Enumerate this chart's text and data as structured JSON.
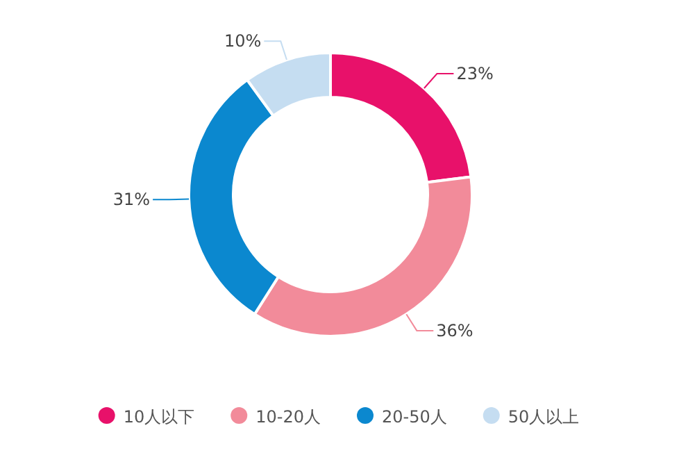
{
  "chart_data": {
    "type": "donut",
    "categories": [
      "10人以下",
      "10-20人",
      "20-50人",
      "50人以上"
    ],
    "values": [
      23,
      36,
      31,
      10
    ],
    "colors": [
      "#e8116a",
      "#f28b9a",
      "#0b88cf",
      "#c5ddf1"
    ],
    "value_labels": [
      "23%",
      "36%",
      "31%",
      "10%"
    ],
    "legend": "bottom"
  }
}
